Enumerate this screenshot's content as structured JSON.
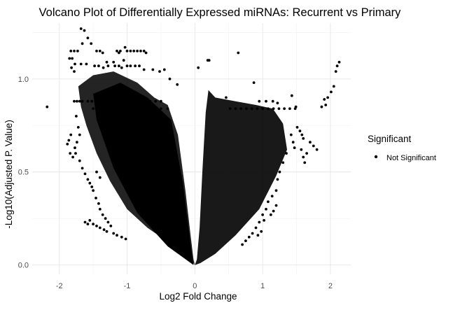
{
  "chart_data": {
    "type": "scatter",
    "title": "Volcano Plot of Differentially Expressed miRNAs: Recurrent vs Primary",
    "xlabel": "Log2 Fold Change",
    "ylabel": "-Log10(Adjusted P. Value)",
    "xlim": [
      -2.4,
      2.3
    ],
    "ylim": [
      -0.05,
      1.3
    ],
    "x_ticks": [
      -2,
      -1,
      0,
      1,
      2
    ],
    "x_tick_labels": [
      "-2",
      "-1",
      "0",
      "1",
      "2"
    ],
    "y_ticks": [
      0.0,
      0.5,
      1.0
    ],
    "y_tick_labels": [
      "0.0",
      "0.5",
      "1.0"
    ],
    "grid": true,
    "legend": {
      "title": "Significant",
      "position": "right",
      "entries": [
        {
          "label": "Not Significant",
          "color": "#000000"
        }
      ]
    },
    "series": [
      {
        "name": "Not Significant",
        "color": "#000000",
        "points": [
          [
            -2.18,
            0.85
          ],
          [
            -1.68,
            1.27
          ],
          [
            -1.63,
            1.26
          ],
          [
            -1.58,
            1.22
          ],
          [
            -1.53,
            1.19
          ],
          [
            -1.66,
            1.19
          ],
          [
            -1.36,
            1.14
          ],
          [
            -1.12,
            1.14
          ],
          [
            -1.03,
            1.17
          ],
          [
            -0.72,
            1.14
          ],
          [
            -1.83,
            1.15
          ],
          [
            -1.78,
            1.15
          ],
          [
            -1.73,
            1.15
          ],
          [
            -1.45,
            1.15
          ],
          [
            -1.4,
            1.15
          ],
          [
            -1.15,
            1.15
          ],
          [
            -1.1,
            1.15
          ],
          [
            -1.0,
            1.15
          ],
          [
            -0.95,
            1.15
          ],
          [
            -0.9,
            1.15
          ],
          [
            -0.85,
            1.15
          ],
          [
            -0.8,
            1.15
          ],
          [
            -0.75,
            1.15
          ],
          [
            -1.85,
            1.11
          ],
          [
            -1.81,
            1.11
          ],
          [
            -1.77,
            1.08
          ],
          [
            -1.68,
            1.08
          ],
          [
            -1.6,
            1.08
          ],
          [
            -1.3,
            1.09
          ],
          [
            -1.2,
            1.09
          ],
          [
            -1.05,
            1.1
          ],
          [
            -1.82,
            1.06
          ],
          [
            -1.78,
            1.04
          ],
          [
            -1.48,
            1.07
          ],
          [
            -1.42,
            1.07
          ],
          [
            -1.35,
            1.06
          ],
          [
            -1.28,
            1.07
          ],
          [
            -1.18,
            1.07
          ],
          [
            -1.12,
            1.07
          ],
          [
            -1.08,
            1.06
          ],
          [
            -1.0,
            1.07
          ],
          [
            -0.95,
            1.07
          ],
          [
            -0.88,
            1.07
          ],
          [
            -0.82,
            1.07
          ],
          [
            -0.75,
            1.05
          ],
          [
            -0.62,
            1.05
          ],
          [
            -0.52,
            1.04
          ],
          [
            -0.45,
            1.05
          ],
          [
            -0.37,
            1.0
          ],
          [
            -0.26,
            0.97
          ],
          [
            0.05,
            1.06
          ],
          [
            0.19,
            1.1
          ],
          [
            0.21,
            1.1
          ],
          [
            0.64,
            1.14
          ],
          [
            0.87,
            0.98
          ],
          [
            0.46,
            0.9
          ],
          [
            1.43,
            0.91
          ],
          [
            1.49,
            0.85
          ],
          [
            1.91,
            0.89
          ],
          [
            1.96,
            0.9
          ],
          [
            2.01,
            0.93
          ],
          [
            2.05,
            0.96
          ],
          [
            2.08,
            1.04
          ],
          [
            2.1,
            1.07
          ],
          [
            2.13,
            1.09
          ],
          [
            1.93,
            0.86
          ],
          [
            1.87,
            0.85
          ],
          [
            -1.78,
            0.88
          ],
          [
            -1.74,
            0.88
          ],
          [
            -1.7,
            0.88
          ],
          [
            -1.66,
            0.88
          ],
          [
            -1.58,
            0.88
          ],
          [
            -1.52,
            0.88
          ],
          [
            -1.45,
            0.88
          ],
          [
            -1.38,
            0.88
          ],
          [
            -1.3,
            0.88
          ],
          [
            -1.22,
            0.88
          ],
          [
            -1.14,
            0.88
          ],
          [
            -1.06,
            0.88
          ],
          [
            -0.98,
            0.88
          ],
          [
            -0.9,
            0.88
          ],
          [
            -0.82,
            0.88
          ],
          [
            -0.74,
            0.88
          ],
          [
            -0.66,
            0.88
          ],
          [
            -0.58,
            0.88
          ],
          [
            -0.5,
            0.88
          ],
          [
            -1.5,
            0.84
          ],
          [
            -1.4,
            0.84
          ],
          [
            -1.3,
            0.84
          ],
          [
            -1.2,
            0.84
          ],
          [
            -1.1,
            0.84
          ],
          [
            -1.0,
            0.84
          ],
          [
            -0.9,
            0.84
          ],
          [
            -0.8,
            0.84
          ],
          [
            -0.7,
            0.84
          ],
          [
            -0.6,
            0.84
          ],
          [
            -0.5,
            0.84
          ],
          [
            -0.4,
            0.84
          ],
          [
            0.52,
            0.84
          ],
          [
            0.6,
            0.84
          ],
          [
            0.68,
            0.84
          ],
          [
            0.76,
            0.84
          ],
          [
            0.84,
            0.84
          ],
          [
            0.92,
            0.84
          ],
          [
            1.0,
            0.84
          ],
          [
            1.08,
            0.84
          ],
          [
            1.16,
            0.84
          ],
          [
            1.24,
            0.84
          ],
          [
            1.32,
            0.84
          ],
          [
            1.4,
            0.84
          ],
          [
            1.48,
            0.84
          ],
          [
            0.95,
            0.88
          ],
          [
            1.05,
            0.88
          ],
          [
            1.15,
            0.88
          ],
          [
            1.22,
            0.87
          ],
          [
            -1.75,
            0.8
          ],
          [
            -1.72,
            0.74
          ],
          [
            -1.7,
            0.7
          ],
          [
            -1.74,
            0.66
          ],
          [
            -1.77,
            0.63
          ],
          [
            -1.76,
            0.6
          ],
          [
            -1.7,
            0.56
          ],
          [
            -1.66,
            0.52
          ],
          [
            -1.62,
            0.49
          ],
          [
            -1.58,
            0.46
          ],
          [
            -1.55,
            0.44
          ],
          [
            -1.52,
            0.42
          ],
          [
            -1.5,
            0.4
          ],
          [
            -1.46,
            0.36
          ],
          [
            -1.42,
            0.33
          ],
          [
            -1.4,
            0.3
          ],
          [
            -1.36,
            0.27
          ],
          [
            -1.32,
            0.25
          ],
          [
            -1.28,
            0.23
          ],
          [
            -1.24,
            0.21
          ],
          [
            -1.5,
            0.22
          ],
          [
            -1.45,
            0.21
          ],
          [
            -1.4,
            0.2
          ],
          [
            -1.62,
            0.23
          ],
          [
            -1.58,
            0.22
          ],
          [
            -1.55,
            0.24
          ],
          [
            -1.34,
            0.19
          ],
          [
            -1.3,
            0.18
          ],
          [
            -1.2,
            0.17
          ],
          [
            -1.15,
            0.16
          ],
          [
            -1.08,
            0.15
          ],
          [
            -1.02,
            0.14
          ],
          [
            -1.83,
            0.7
          ],
          [
            -1.86,
            0.67
          ],
          [
            -1.88,
            0.65
          ],
          [
            -1.84,
            0.6
          ],
          [
            -1.8,
            0.58
          ],
          [
            -1.45,
            0.5
          ],
          [
            -1.4,
            0.47
          ],
          [
            1.51,
            0.74
          ],
          [
            1.55,
            0.72
          ],
          [
            1.58,
            0.7
          ],
          [
            1.6,
            0.68
          ],
          [
            1.57,
            0.62
          ],
          [
            1.6,
            0.58
          ],
          [
            1.62,
            0.55
          ],
          [
            1.65,
            0.6
          ],
          [
            1.7,
            0.66
          ],
          [
            1.75,
            0.64
          ],
          [
            1.8,
            0.62
          ],
          [
            1.42,
            0.7
          ],
          [
            1.45,
            0.66
          ],
          [
            1.47,
            0.63
          ],
          [
            1.35,
            0.6
          ],
          [
            1.3,
            0.55
          ],
          [
            1.25,
            0.5
          ],
          [
            1.22,
            0.46
          ],
          [
            1.2,
            0.4
          ],
          [
            1.14,
            0.37
          ],
          [
            1.08,
            0.34
          ],
          [
            1.05,
            0.3
          ],
          [
            1.0,
            0.27
          ],
          [
            0.95,
            0.23
          ],
          [
            0.9,
            0.2
          ],
          [
            0.85,
            0.17
          ],
          [
            0.8,
            0.15
          ],
          [
            0.75,
            0.13
          ],
          [
            0.7,
            0.11
          ],
          [
            1.02,
            0.24
          ],
          [
            0.98,
            0.18
          ],
          [
            0.93,
            0.16
          ],
          [
            1.2,
            0.32
          ],
          [
            1.16,
            0.29
          ],
          [
            1.12,
            0.27
          ]
        ]
      }
    ]
  }
}
